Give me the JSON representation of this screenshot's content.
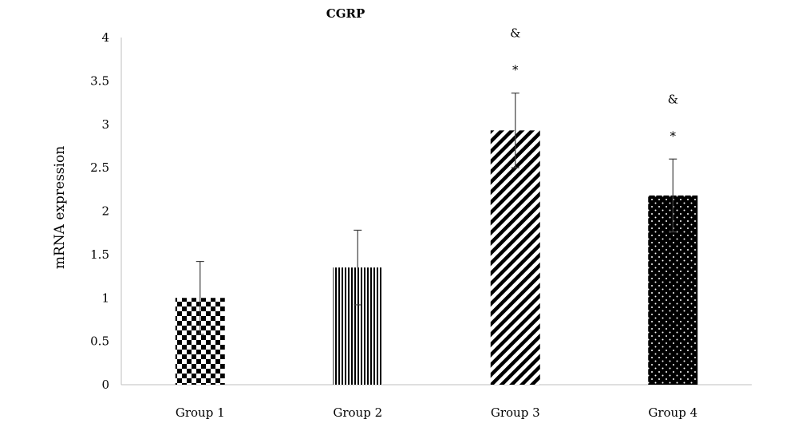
{
  "chart_data": {
    "type": "bar",
    "title": "CGRP",
    "xlabel": "",
    "ylabel": "mRNA expression",
    "categories": [
      "Group 1",
      "Group 2",
      "Group 3",
      "Group 4"
    ],
    "values": [
      1.0,
      1.35,
      2.93,
      2.18
    ],
    "error_upper": [
      1.42,
      1.78,
      3.36,
      2.6
    ],
    "error_lower": [
      0.58,
      0.92,
      2.5,
      1.76
    ],
    "patterns": [
      "checker",
      "vertical-lines",
      "diagonal-lines",
      "dots"
    ],
    "annotations": [
      {
        "category": "Group 3",
        "marks": [
          "&",
          "*"
        ]
      },
      {
        "category": "Group 4",
        "marks": [
          "&",
          "*"
        ]
      }
    ],
    "ylim": [
      0,
      4
    ],
    "yticks": [
      0,
      0.5,
      1,
      1.5,
      2,
      2.5,
      3,
      3.5,
      4
    ],
    "ytick_labels": [
      "0",
      "0.5",
      "1",
      "1.5",
      "2",
      "2.5",
      "3",
      "3.5",
      "4"
    ],
    "grid": false,
    "colors": {
      "bar": "#000000",
      "background": "#ffffff",
      "axis": "#bfbfbf",
      "errorbar": "#404040"
    }
  }
}
